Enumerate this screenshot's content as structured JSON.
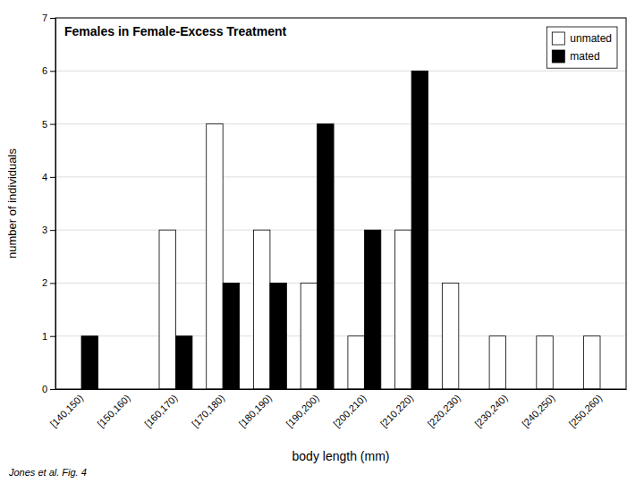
{
  "chart_data": {
    "type": "bar",
    "title": "Females in Female-Excess Treatment",
    "xlabel": "body length (mm)",
    "ylabel": "number of individuals",
    "annotations": [
      "Jones et al. Fig. 4"
    ],
    "categories": [
      "[140,150)",
      "[150,160)",
      "[160,170)",
      "[170,180)",
      "[180,190)",
      "[190,200)",
      "[200,210)",
      "[210,220)",
      "[220,230)",
      "[230,240)",
      "[240,250)",
      "[250,260)"
    ],
    "series": [
      {
        "name": "unmated",
        "color": "#ffffff",
        "values": [
          0,
          0,
          3,
          5,
          3,
          2,
          1,
          3,
          2,
          1,
          1,
          1
        ]
      },
      {
        "name": "mated",
        "color": "#000000",
        "values": [
          1,
          0,
          1,
          2,
          2,
          5,
          3,
          6,
          0,
          0,
          0,
          0
        ]
      }
    ],
    "ylim": [
      0,
      7
    ],
    "yticks": [
      0,
      1,
      2,
      3,
      4,
      5,
      6,
      7
    ],
    "grid": true,
    "legend": "upper right"
  }
}
